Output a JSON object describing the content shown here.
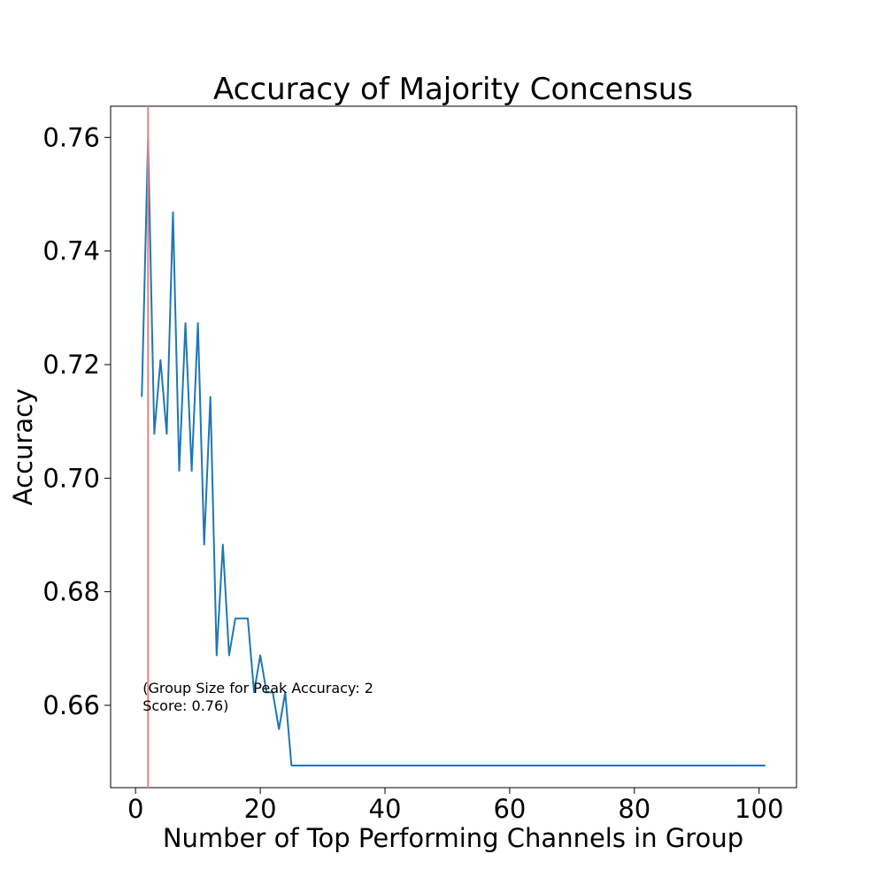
{
  "chart_data": {
    "type": "line",
    "title": "Accuracy of Majority Concensus",
    "xlabel": "Number of Top Performing Channels in Group",
    "ylabel": "Accuracy",
    "xlim": [
      -4,
      106
    ],
    "ylim": [
      0.6455,
      0.7655
    ],
    "xticks": [
      0,
      20,
      40,
      60,
      80,
      100
    ],
    "yticks": [
      0.66,
      0.68,
      0.7,
      0.72,
      0.74,
      0.76
    ],
    "grid": false,
    "legend": "none",
    "series": [
      {
        "color": "#1f77b4",
        "x": [
          1,
          2,
          3,
          4,
          5,
          6,
          7,
          8,
          9,
          10,
          11,
          12,
          13,
          14,
          15,
          16,
          17,
          18,
          19,
          20,
          21,
          22,
          23,
          24,
          25,
          30,
          40,
          50,
          60,
          70,
          80,
          90,
          100,
          101
        ],
        "y": [
          0.7143,
          0.7597,
          0.7078,
          0.7208,
          0.7078,
          0.7468,
          0.7013,
          0.7273,
          0.7013,
          0.7273,
          0.6883,
          0.7143,
          0.6688,
          0.6883,
          0.6688,
          0.6753,
          0.6753,
          0.6753,
          0.6623,
          0.6688,
          0.6623,
          0.6623,
          0.6558,
          0.6623,
          0.6494,
          0.6494,
          0.6494,
          0.6494,
          0.6494,
          0.6494,
          0.6494,
          0.6494,
          0.6494,
          0.6494
        ]
      }
    ],
    "vline": {
      "x": 2,
      "color": "#f08080"
    },
    "annotation": {
      "line1": "(Group Size for Peak Accuracy: 2",
      "line2": "Score: 0.76)",
      "x": 1,
      "y": 0.6603
    }
  }
}
